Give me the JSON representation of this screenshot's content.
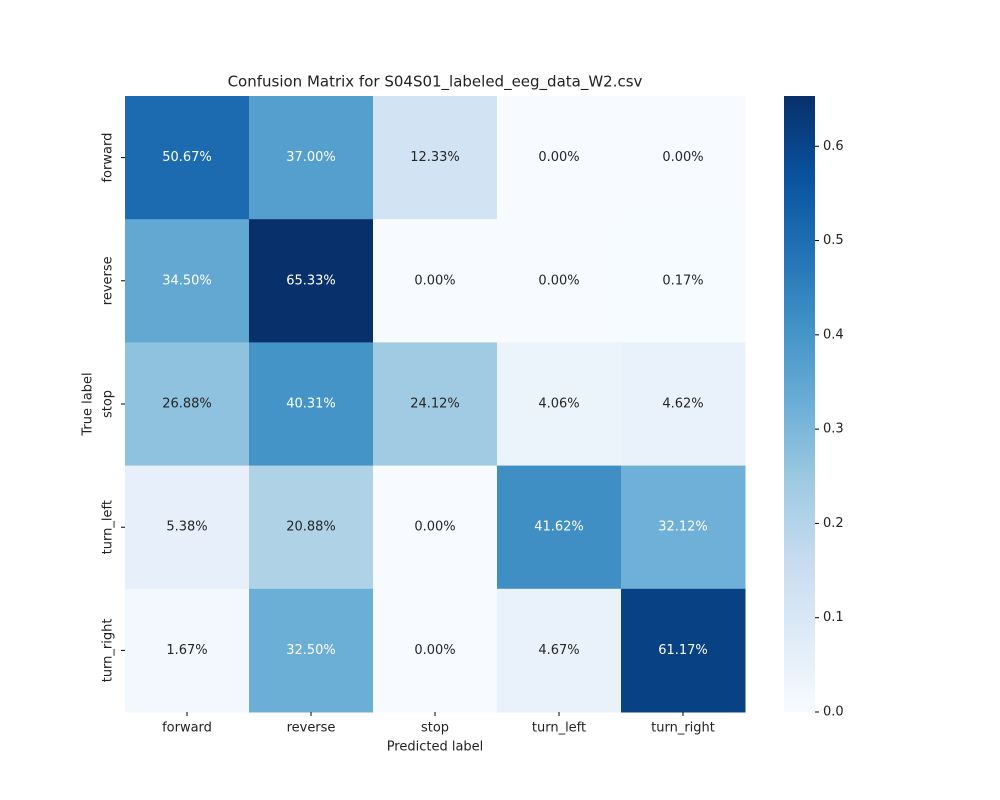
{
  "chart_data": {
    "type": "heatmap",
    "title": "Confusion Matrix for S04S01_labeled_eeg_data_W2.csv",
    "x_label": "Predicted label",
    "y_label": "True label",
    "xcategories": [
      "forward",
      "reverse",
      "stop",
      "turn_left",
      "turn_right"
    ],
    "ycategories": [
      "forward",
      "reverse",
      "stop",
      "turn_left",
      "turn_right"
    ],
    "values": [
      [
        0.5067,
        0.37,
        0.1233,
        0,
        0
      ],
      [
        0.345,
        0.6533,
        0,
        0,
        0.0017
      ],
      [
        0.2688,
        0.4031,
        0.2412,
        0.0406,
        0.0462
      ],
      [
        0.0538,
        0.2088,
        0,
        0.4162,
        0.3212
      ],
      [
        0.0167,
        0.325,
        0,
        0.0467,
        0.6117
      ]
    ],
    "value_labels": [
      [
        "50.67%",
        "37.00%",
        "12.33%",
        "0.00%",
        "0.00%"
      ],
      [
        "34.50%",
        "65.33%",
        "0.00%",
        "0.00%",
        "0.17%"
      ],
      [
        "26.88%",
        "40.31%",
        "24.12%",
        "4.06%",
        "4.62%"
      ],
      [
        "5.38%",
        "20.88%",
        "0.00%",
        "41.62%",
        "32.12%"
      ],
      [
        "1.67%",
        "32.50%",
        "0.00%",
        "4.67%",
        "61.17%"
      ]
    ],
    "colormap": "Blues",
    "clim": [
      0,
      0.6533
    ],
    "cticks": [
      {
        "value": 0,
        "label": "0.0"
      },
      0.1,
      0.2,
      0.3,
      0.4,
      0.5,
      0.6
    ]
  }
}
